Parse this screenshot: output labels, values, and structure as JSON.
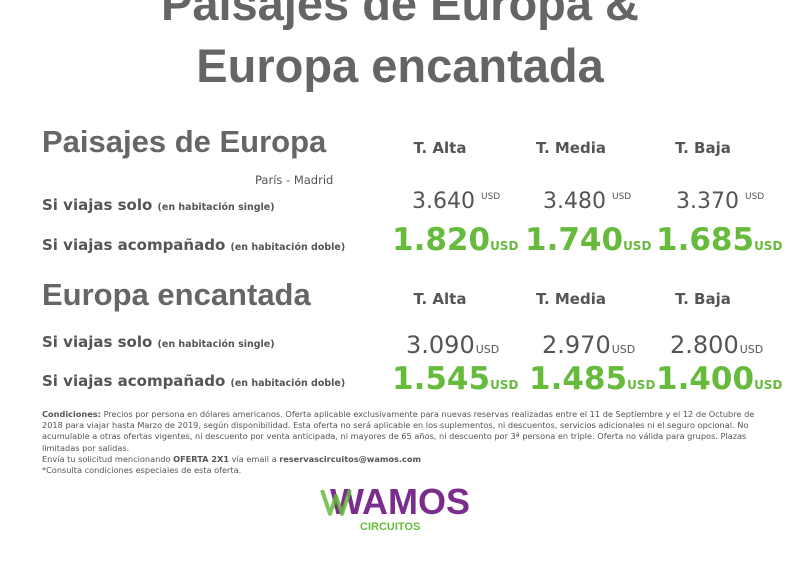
{
  "header": {
    "title_line1": "Paisajes de Europa &",
    "title_line2": "Europa encantada"
  },
  "columns": [
    "T. Alta",
    "T. Media",
    "T. Baja"
  ],
  "sections": [
    {
      "title": "Paisajes de Europa",
      "route": "París - Madrid",
      "solo_label": "Si viajas solo",
      "solo_note": "(en habitación single)",
      "solo_prices": [
        "3.640",
        "3.480",
        "3.370"
      ],
      "acomp_label": "Si viajas acompañado",
      "acomp_note": "(en habitación doble)",
      "acomp_prices": [
        "1.820",
        "1.740",
        "1.685"
      ]
    },
    {
      "title": "Europa encantada",
      "solo_label": "Si viajas solo",
      "solo_note": "(en habitación single)",
      "solo_prices": [
        "3.090",
        "2.970",
        "2.800"
      ],
      "acomp_label": "Si viajas acompañado",
      "acomp_note": "(en habitación doble)",
      "acomp_prices": [
        "1.545",
        "1.485",
        "1.400"
      ]
    }
  ],
  "currency": "USD",
  "conditions": {
    "label": "Condiciones:",
    "text": "Precios por persona en dólares americanos. Oferta aplicable exclusivamente para nuevas reservas realizadas entre el 11 de Septiembre y el 12 de Octubre de 2018 para viajar hasta Marzo de 2019, según disponibilidad. Esta oferta no será aplicable en los suplementos, ni descuentos, servicios adicionales ni el seguro opcional. No acumulable a otras ofertas vigentes, ni descuento por venta anticipada, ni mayores de 65 años, ni descuento por 3ª persona en triple. Oferta no válida para grupos. Plazas limitadas por salidas.",
    "send_prefix": "Envía tu solicitud mencionando",
    "offer_code": "OFERTA 2X1",
    "send_mid": "vía email a",
    "email": "reservascircuitos@wamos.com",
    "footnote": "*Consulta condiciones especiales de esta oferta."
  },
  "logo": {
    "brand": "WAMOS",
    "sub": "CIRCUITOS",
    "purple": "#7b2d8e",
    "green": "#66bb3c"
  },
  "colors": {
    "accent_green": "#66bb3c",
    "text_gray": "#555555"
  }
}
